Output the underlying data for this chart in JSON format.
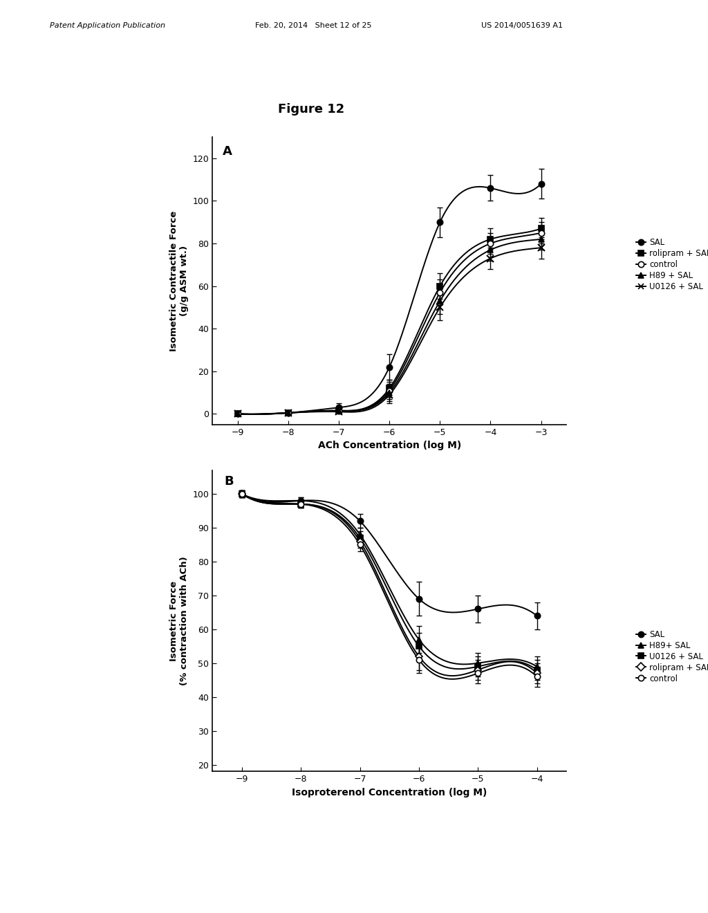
{
  "figure_title": "Figure 12",
  "panel_A": {
    "label": "A",
    "xlabel": "ACh Concentration (log M)",
    "ylabel": "Isometric Contractile Force\n(g/g ASM wt.)",
    "xlim": [
      -9.5,
      -2.5
    ],
    "ylim": [
      -5,
      130
    ],
    "xticks": [
      -9,
      -8,
      -7,
      -6,
      -5,
      -4,
      -3
    ],
    "yticks": [
      0,
      20,
      40,
      60,
      80,
      100,
      120
    ],
    "series": {
      "SAL": {
        "x": [
          -9,
          -8,
          -7,
          -6,
          -5,
          -4,
          -3
        ],
        "y": [
          0,
          0.5,
          3,
          22,
          90,
          106,
          108
        ],
        "yerr": [
          0.3,
          0.5,
          2,
          6,
          7,
          6,
          7
        ],
        "marker": "o",
        "fillstyle": "full",
        "color": "black",
        "label": "SAL"
      },
      "rolipram_SAL": {
        "x": [
          -9,
          -8,
          -7,
          -6,
          -5,
          -4,
          -3
        ],
        "y": [
          0,
          0.5,
          1.5,
          12,
          60,
          82,
          87
        ],
        "yerr": [
          0.3,
          0.5,
          1,
          4,
          6,
          5,
          5
        ],
        "marker": "s",
        "fillstyle": "full",
        "color": "black",
        "label": "rolipram + SAL"
      },
      "control": {
        "x": [
          -9,
          -8,
          -7,
          -6,
          -5,
          -4,
          -3
        ],
        "y": [
          0,
          0.5,
          1.5,
          11,
          57,
          80,
          85
        ],
        "yerr": [
          0.3,
          0.5,
          1,
          4,
          6,
          5,
          5
        ],
        "marker": "o",
        "fillstyle": "none",
        "color": "black",
        "label": "control"
      },
      "H89_SAL": {
        "x": [
          -9,
          -8,
          -7,
          -6,
          -5,
          -4,
          -3
        ],
        "y": [
          0,
          0.5,
          1.5,
          10,
          53,
          77,
          82
        ],
        "yerr": [
          0.3,
          0.5,
          1,
          4,
          6,
          5,
          5
        ],
        "marker": "^",
        "fillstyle": "full",
        "color": "black",
        "label": "H89 + SAL"
      },
      "U0126_SAL": {
        "x": [
          -9,
          -8,
          -7,
          -6,
          -5,
          -4,
          -3
        ],
        "y": [
          0,
          0.5,
          1,
          9,
          50,
          73,
          78
        ],
        "yerr": [
          0.3,
          0.5,
          1,
          4,
          6,
          5,
          5
        ],
        "marker": "x",
        "fillstyle": "full",
        "color": "black",
        "label": "U0126 + SAL"
      }
    },
    "legend_order": [
      "SAL",
      "rolipram_SAL",
      "control",
      "H89_SAL",
      "U0126_SAL"
    ]
  },
  "panel_B": {
    "label": "B",
    "xlabel": "Isoproterenol Concentration (log M)",
    "ylabel": "Isometric Force\n(% contraction with ACh)",
    "xlim": [
      -9.5,
      -3.5
    ],
    "ylim": [
      18,
      107
    ],
    "xticks": [
      -9,
      -8,
      -7,
      -6,
      -5,
      -4
    ],
    "yticks": [
      20,
      30,
      40,
      50,
      60,
      70,
      80,
      90,
      100
    ],
    "series": {
      "SAL": {
        "x": [
          -9,
          -8,
          -7,
          -6,
          -5,
          -4
        ],
        "y": [
          100,
          98,
          92,
          69,
          66,
          64
        ],
        "yerr": [
          1,
          1,
          2,
          5,
          4,
          4
        ],
        "marker": "o",
        "fillstyle": "full",
        "color": "black",
        "label": "SAL"
      },
      "H89_SAL": {
        "x": [
          -9,
          -8,
          -7,
          -6,
          -5,
          -4
        ],
        "y": [
          100,
          98,
          88,
          57,
          50,
          49
        ],
        "yerr": [
          1,
          1,
          2,
          4,
          3,
          3
        ],
        "marker": "^",
        "fillstyle": "full",
        "color": "black",
        "label": "H89+ SAL"
      },
      "U0126_SAL": {
        "x": [
          -9,
          -8,
          -7,
          -6,
          -5,
          -4
        ],
        "y": [
          100,
          97,
          87,
          55,
          49,
          48
        ],
        "yerr": [
          1,
          1,
          2,
          4,
          3,
          3
        ],
        "marker": "s",
        "fillstyle": "full",
        "color": "black",
        "label": "U0126 + SAL"
      },
      "rolipram_SAL": {
        "x": [
          -9,
          -8,
          -7,
          -6,
          -5,
          -4
        ],
        "y": [
          100,
          97,
          86,
          52,
          48,
          47
        ],
        "yerr": [
          1,
          1,
          2,
          4,
          3,
          3
        ],
        "marker": "D",
        "fillstyle": "none",
        "color": "black",
        "label": "rolipram + SAL"
      },
      "control": {
        "x": [
          -9,
          -8,
          -7,
          -6,
          -5,
          -4
        ],
        "y": [
          100,
          97,
          85,
          51,
          47,
          46
        ],
        "yerr": [
          1,
          1,
          2,
          4,
          3,
          3
        ],
        "marker": "o",
        "fillstyle": "none",
        "color": "black",
        "label": "control"
      }
    },
    "legend_order": [
      "SAL",
      "H89_SAL",
      "U0126_SAL",
      "rolipram_SAL",
      "control"
    ]
  },
  "background_color": "#ffffff"
}
